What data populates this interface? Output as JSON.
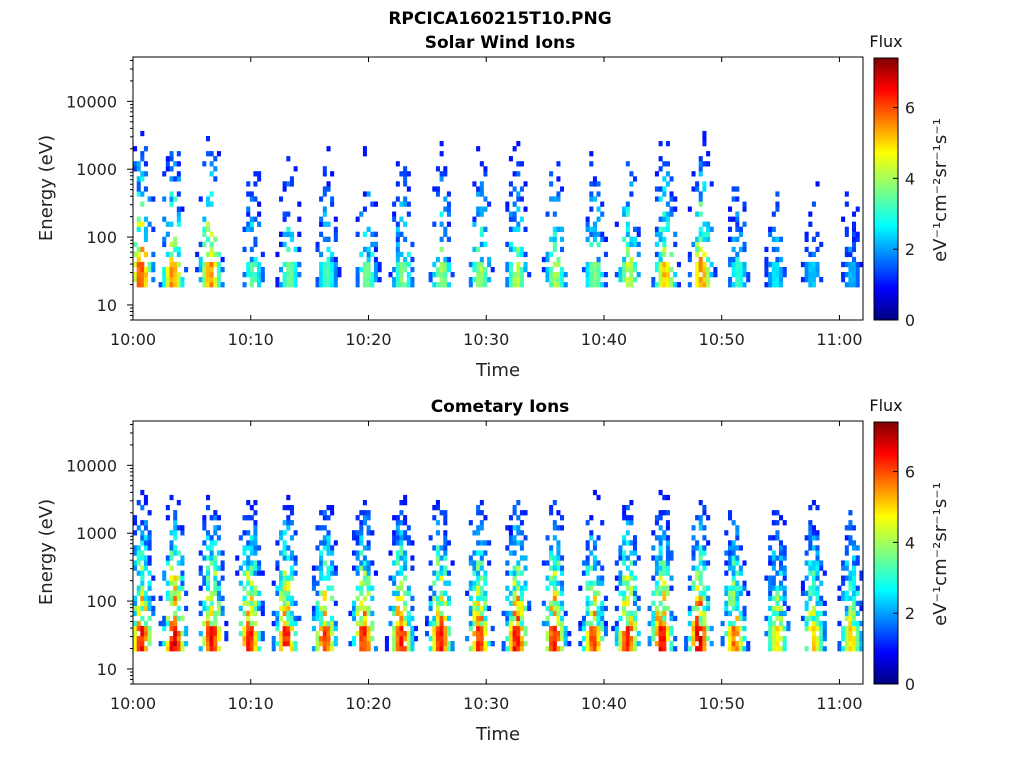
{
  "figure_title": "RPCICA160215T10.PNG",
  "chart_data": [
    {
      "type": "heatmap",
      "title": "Solar Wind Ions",
      "xlabel": "Time",
      "ylabel": "Energy (eV)",
      "x_ticks": [
        "10:00",
        "10:10",
        "10:20",
        "10:30",
        "10:40",
        "10:50",
        "11:00"
      ],
      "xlim": [
        "10:00",
        "11:02"
      ],
      "y_scale": "log",
      "y_ticks": [
        "10",
        "100",
        "1000",
        "10000"
      ],
      "ylim": [
        6,
        45000
      ],
      "colorbar": {
        "title": "Flux",
        "unit": "eV⁻¹cm⁻²sr⁻¹s⁻¹",
        "ticks": [
          "0",
          "2",
          "4",
          "6"
        ],
        "range": [
          0,
          7.4
        ],
        "colormap": "jet"
      },
      "pulses": [
        {
          "t": 0.7,
          "flux": 6.3
        },
        {
          "t": 3.4,
          "flux": 5.8
        },
        {
          "t": 6.6,
          "flux": 5.8
        },
        {
          "t": 10.2,
          "flux": 3.6
        },
        {
          "t": 13.3,
          "flux": 3.8
        },
        {
          "t": 16.5,
          "flux": 3.6
        },
        {
          "t": 19.9,
          "flux": 3.9
        },
        {
          "t": 22.9,
          "flux": 4.0
        },
        {
          "t": 26.2,
          "flux": 4.1
        },
        {
          "t": 29.5,
          "flux": 4.2
        },
        {
          "t": 32.6,
          "flux": 4.4
        },
        {
          "t": 35.9,
          "flux": 4.3
        },
        {
          "t": 39.2,
          "flux": 4.1
        },
        {
          "t": 42.1,
          "flux": 4.6
        },
        {
          "t": 45.2,
          "flux": 5.4
        },
        {
          "t": 48.3,
          "flux": 5.7
        },
        {
          "t": 51.4,
          "flux": 3.3
        },
        {
          "t": 54.6,
          "flux": 2.8
        },
        {
          "t": 57.7,
          "flux": 2.6
        },
        {
          "t": 61.0,
          "flux": 2.4
        }
      ]
    },
    {
      "type": "heatmap",
      "title": "Cometary Ions",
      "xlabel": "Time",
      "ylabel": "Energy (eV)",
      "x_ticks": [
        "10:00",
        "10:10",
        "10:20",
        "10:30",
        "10:40",
        "10:50",
        "11:00"
      ],
      "xlim": [
        "10:00",
        "11:02"
      ],
      "y_scale": "log",
      "y_ticks": [
        "10",
        "100",
        "1000",
        "10000"
      ],
      "ylim": [
        6,
        45000
      ],
      "colorbar": {
        "title": "Flux",
        "unit": "eV⁻¹cm⁻²sr⁻¹s⁻¹",
        "ticks": [
          "0",
          "2",
          "4",
          "6"
        ],
        "range": [
          0,
          7.4
        ],
        "colormap": "jet"
      },
      "pulses": [
        {
          "t": 0.7,
          "flux": 6.8
        },
        {
          "t": 3.5,
          "flux": 7.1
        },
        {
          "t": 6.7,
          "flux": 7.0
        },
        {
          "t": 9.9,
          "flux": 6.7
        },
        {
          "t": 13.0,
          "flux": 6.6
        },
        {
          "t": 16.3,
          "flux": 6.5
        },
        {
          "t": 19.6,
          "flux": 6.6
        },
        {
          "t": 22.8,
          "flux": 6.6
        },
        {
          "t": 26.1,
          "flux": 6.7
        },
        {
          "t": 29.4,
          "flux": 6.5
        },
        {
          "t": 32.6,
          "flux": 6.9
        },
        {
          "t": 35.8,
          "flux": 6.7
        },
        {
          "t": 39.1,
          "flux": 6.3
        },
        {
          "t": 42.0,
          "flux": 6.6
        },
        {
          "t": 44.9,
          "flux": 6.9
        },
        {
          "t": 48.1,
          "flux": 7.1
        },
        {
          "t": 51.1,
          "flux": 6.0
        },
        {
          "t": 54.7,
          "flux": 5.1
        },
        {
          "t": 57.8,
          "flux": 5.3
        },
        {
          "t": 61.0,
          "flux": 5.2
        }
      ]
    }
  ]
}
